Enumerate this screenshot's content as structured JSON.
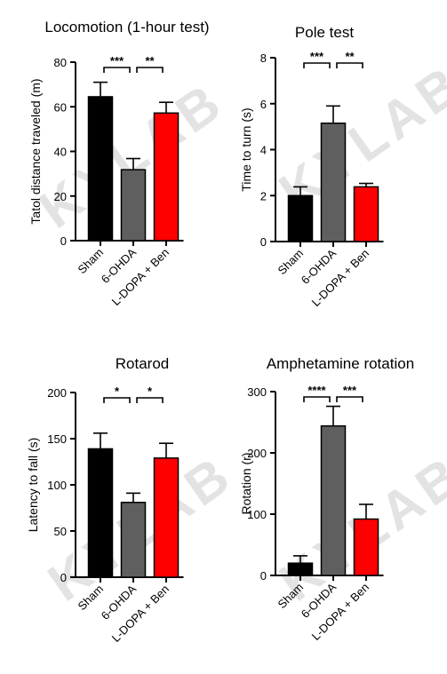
{
  "watermark": "KYLAB",
  "colors": {
    "Sham": "#000000",
    "6-OHDA": "#5f5f5f",
    "L-DOPA + Ben": "#ff0000"
  },
  "chart_data": [
    {
      "type": "bar",
      "title": "Locomotion (1-hour test)",
      "ylabel": "Tatol distance traveled (m)",
      "categories": [
        "Sham",
        "6-OHDA",
        "L-DOPA + Ben"
      ],
      "values": [
        64.5,
        31.8,
        57.2
      ],
      "errors": [
        6.5,
        5.0,
        4.8
      ],
      "ylim": [
        0,
        80
      ],
      "yticks": [
        0,
        20,
        40,
        60,
        80
      ],
      "significance": [
        {
          "from": 0,
          "to": 1,
          "label": "***"
        },
        {
          "from": 1,
          "to": 2,
          "label": "**"
        }
      ]
    },
    {
      "type": "bar",
      "title": "Pole test",
      "ylabel": "Time to turn (s)",
      "categories": [
        "Sham",
        "6-OHDA",
        "L-DOPA + Ben"
      ],
      "values": [
        2.0,
        5.15,
        2.38
      ],
      "errors": [
        0.38,
        0.75,
        0.15
      ],
      "ylim": [
        0,
        8
      ],
      "yticks": [
        0,
        2,
        4,
        6,
        8
      ],
      "significance": [
        {
          "from": 0,
          "to": 1,
          "label": "***"
        },
        {
          "from": 1,
          "to": 2,
          "label": "**"
        }
      ]
    },
    {
      "type": "bar",
      "title": "Rotarod",
      "ylabel": "Latency to fall (s)",
      "categories": [
        "Sham",
        "6-OHDA",
        "L-DOPA + Ben"
      ],
      "values": [
        139,
        81,
        129
      ],
      "errors": [
        17,
        10,
        16
      ],
      "ylim": [
        0,
        200
      ],
      "yticks": [
        0,
        50,
        100,
        150,
        200
      ],
      "significance": [
        {
          "from": 0,
          "to": 1,
          "label": "*"
        },
        {
          "from": 1,
          "to": 2,
          "label": "*"
        }
      ]
    },
    {
      "type": "bar",
      "title": "Amphetamine rotation",
      "ylabel": "Rotation (r)",
      "categories": [
        "Sham",
        "6-OHDA",
        "L-DOPA + Ben"
      ],
      "values": [
        20,
        244,
        92
      ],
      "errors": [
        12,
        32,
        24
      ],
      "ylim": [
        0,
        300
      ],
      "yticks": [
        0,
        100,
        200,
        300
      ],
      "significance": [
        {
          "from": 0,
          "to": 1,
          "label": "****"
        },
        {
          "from": 1,
          "to": 2,
          "label": "***"
        }
      ]
    }
  ]
}
